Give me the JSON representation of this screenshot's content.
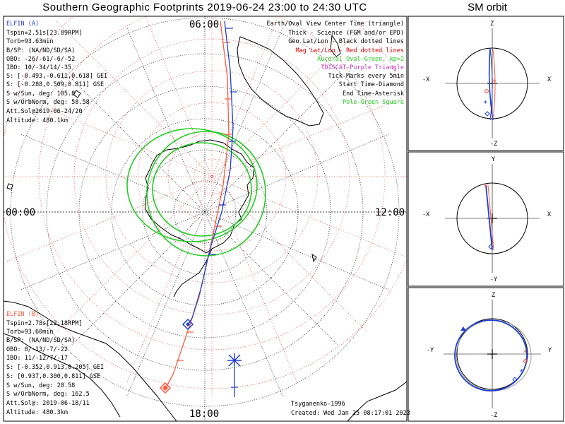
{
  "title": "Southern Geographic Footprints 2019-06-24 23:00 to 24:30 UTC",
  "sm_title": "SM orbit",
  "time_labels": {
    "top": "06:00",
    "left": "00:00",
    "right": "12:00",
    "bottom": "18:00"
  },
  "elfin_a": {
    "name": "ELFIN (A)",
    "color": "#1f3fd0",
    "lines": [
      "Tspin=2.51s[23.89RPM]",
      "Torb=93.63min",
      "B/SP: (NA/ND/SD/SA)",
      "OBO: -26/-61/-6/-52",
      "IBO: 10/-34/14/-35",
      "S: [-0.493,-0.611,0.618] GEI",
      "S: [-0.288,0.509,0.811] GSE",
      "S w/Sun, deg: 105.8",
      "S w/OrbNorm, deg: 58.58",
      "Att.Sol@2019-06-24/20",
      "Altitude: 480.1km"
    ]
  },
  "elfin_b": {
    "name": "ELFIN (B)",
    "color": "#ff5a3c",
    "lines": [
      "Tspin=2.78s[22.18RPM]",
      "Torb=93.60min",
      "B/SP: (NA/ND/SD/SA)",
      "OBO: 0/-13/-7/-22",
      "IBO: 11/-12/7/-17",
      "S: [-0.352,0.913,0.205] GEI",
      "S: [0.937,0.300,0.811] GSE",
      "S w/Sun, deg: 20.58",
      "S w/OrbNorm, deg: 162.5",
      "Att.Sol@: 2019-06-18/11",
      "Altitude: 480.3km"
    ]
  },
  "legend": [
    {
      "text": "Earth/Oval View Center Time (triangle)",
      "color": "#000000"
    },
    {
      "text": "Thick - Science (FGM and/or EPD)",
      "color": "#000000"
    },
    {
      "text": "Geo Lat/Lon - Black dotted lines",
      "color": "#000000"
    },
    {
      "text": "Mag Lat/Lon - Red dotted lines",
      "color": "#e00000"
    },
    {
      "text": "Auroral Oval-Green, kp=2",
      "color": "#22cc22"
    },
    {
      "text": "TDISCAT-Purple Triangle",
      "color": "#cc33cc"
    },
    {
      "text": "Tick Marks every 5min",
      "color": "#000000"
    },
    {
      "text": "Start Time-Diamond",
      "color": "#000000"
    },
    {
      "text": "End Time-Asterisk",
      "color": "#000000"
    },
    {
      "text": "Pole-Green Square",
      "color": "#22cc22"
    }
  ],
  "credit": "Tsyganenko-1996",
  "created": "Created: Wed Jan 25 08:17:01 2023",
  "sm_panels": [
    {
      "top": "Z",
      "bottom": "-Z",
      "left": "-X",
      "right": "X"
    },
    {
      "top": "Y",
      "bottom": "-Y",
      "left": "-X",
      "right": "X"
    },
    {
      "top": "Z",
      "bottom": "-Z",
      "left": "-Y",
      "right": "Y"
    }
  ],
  "colors": {
    "elfin_a": "#1f3fd0",
    "elfin_b": "#ff5a3c",
    "oval": "#22cc22",
    "grid_geo": "#000000",
    "grid_mag": "#e03030"
  }
}
